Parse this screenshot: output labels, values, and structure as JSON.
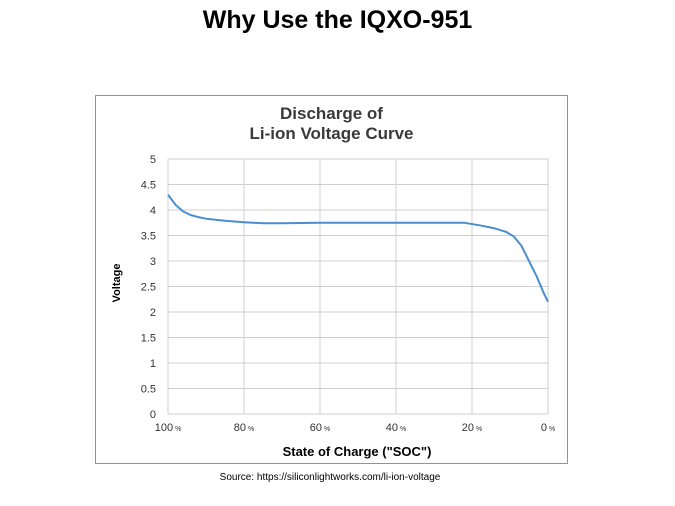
{
  "slide": {
    "title": "Why Use the IQXO-951",
    "source": "Source: https://siliconlightworks.com/li-ion-voltage"
  },
  "chart_data": {
    "type": "line",
    "title_line1": "Discharge of",
    "title_line2": "Li-ion Voltage Curve",
    "xlabel": "State of Charge (\"SOC\")",
    "ylabel": "Voltage",
    "xlim": [
      100,
      0
    ],
    "ylim": [
      0,
      5
    ],
    "grid": true,
    "x_ticks": [
      {
        "value": 100,
        "label": "100",
        "unit": "%"
      },
      {
        "value": 80,
        "label": "80",
        "unit": "%"
      },
      {
        "value": 60,
        "label": "60",
        "unit": "%"
      },
      {
        "value": 40,
        "label": "40",
        "unit": "%"
      },
      {
        "value": 20,
        "label": "20",
        "unit": "%"
      },
      {
        "value": 0,
        "label": "0",
        "unit": "%"
      }
    ],
    "y_ticks": [
      "0",
      "0.5",
      "1",
      "1.5",
      "2",
      "2.5",
      "3",
      "3.5",
      "4",
      "4.5",
      "5"
    ],
    "series": [
      {
        "color": "#4a8ed0",
        "x": [
          100,
          98,
          96,
          94,
          92,
          90,
          85,
          80,
          75,
          70,
          60,
          50,
          40,
          30,
          22,
          18,
          14,
          11,
          9,
          7,
          5,
          3,
          1,
          0
        ],
        "y": [
          4.3,
          4.1,
          3.97,
          3.9,
          3.86,
          3.83,
          3.79,
          3.76,
          3.74,
          3.74,
          3.75,
          3.75,
          3.75,
          3.75,
          3.75,
          3.7,
          3.64,
          3.57,
          3.48,
          3.3,
          3.0,
          2.7,
          2.35,
          2.2
        ]
      }
    ],
    "colors": {
      "frame": "#6b9dc9",
      "grid": "#cfcfcf",
      "axis_text": "#333333",
      "line": "#4a8ed0"
    }
  }
}
